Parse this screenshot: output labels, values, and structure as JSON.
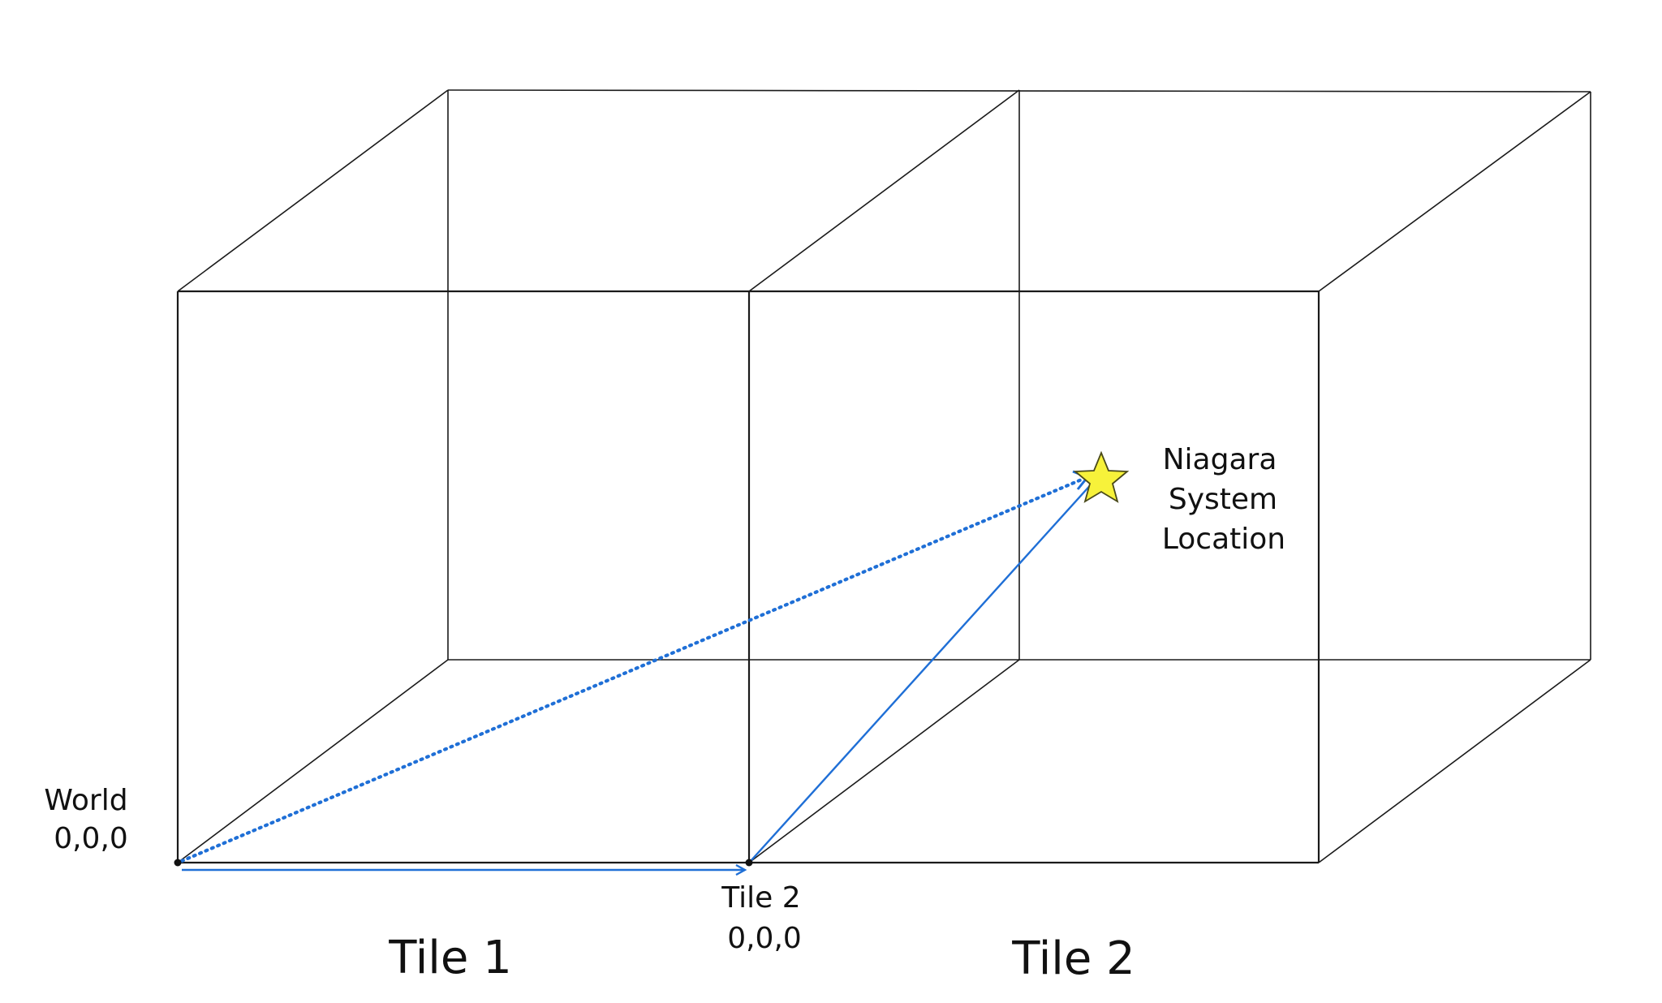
{
  "labels": {
    "world": "World",
    "world_coords": "0,0,0",
    "tile2_origin": "Tile 2",
    "tile2_origin_coords": "0,0,0",
    "niagara_line1": "Niagara",
    "niagara_line2": "System",
    "niagara_line3": "Location",
    "tile1": "Tile 1",
    "tile2": "Tile 2"
  },
  "colors": {
    "arrow": "#1f6fd6",
    "star_fill": "#f7f23a",
    "edge": "#1a1a1a"
  },
  "icons": {
    "marker": "star-icon"
  }
}
